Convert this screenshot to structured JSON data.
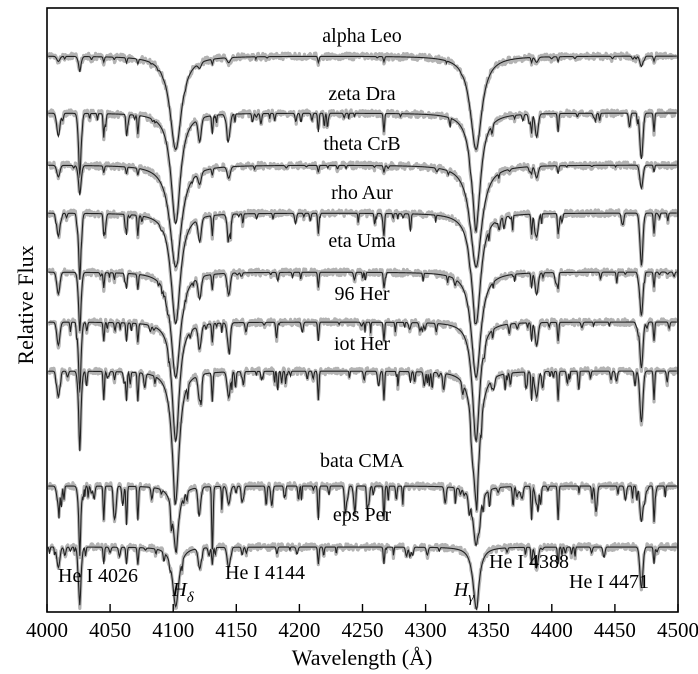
{
  "chart_data": {
    "type": "line",
    "title": "",
    "xlabel": "Wavelength (Å)",
    "ylabel": "Relative Flux",
    "xlim": [
      4000,
      4500
    ],
    "x_ticks": [
      4000,
      4050,
      4100,
      4150,
      4200,
      4250,
      4300,
      4350,
      4400,
      4450,
      4500
    ],
    "y_ticks_shown": false,
    "grid": false,
    "legend": "none",
    "colors": {
      "observed": "#b3b3b3",
      "model": "#222222",
      "axis": "#000000"
    },
    "line_annotations": [
      {
        "text": "He I 4026",
        "wavelength": 4026
      },
      {
        "text": "H",
        "subscript": "δ",
        "wavelength": 4102
      },
      {
        "text": "He I 4144",
        "wavelength": 4144
      },
      {
        "text": "H",
        "subscript": "γ",
        "wavelength": 4340
      },
      {
        "text": "He I 4388",
        "wavelength": 4388
      },
      {
        "text": "He I 4471",
        "wavelength": 4471
      }
    ],
    "series": [
      {
        "name": "alpha Leo",
        "hdelta_depth": 0.055,
        "hgamma_depth": 0.055,
        "hwidth": 5.5,
        "metal": 0.15,
        "he": 0.2,
        "seed": 3
      },
      {
        "name": "zeta Dra",
        "hdelta_depth": 0.065,
        "hgamma_depth": 0.065,
        "hwidth": 4.5,
        "metal": 0.55,
        "he": 0.9,
        "seed": 7
      },
      {
        "name": "theta CrB",
        "hdelta_depth": 0.06,
        "hgamma_depth": 0.06,
        "hwidth": 5.5,
        "metal": 0.2,
        "he": 0.45,
        "seed": 11
      },
      {
        "name": "rho Aur",
        "hdelta_depth": 0.065,
        "hgamma_depth": 0.065,
        "hwidth": 4.5,
        "metal": 0.6,
        "he": 0.9,
        "seed": 13
      },
      {
        "name": "eta Uma",
        "hdelta_depth": 0.062,
        "hgamma_depth": 0.062,
        "hwidth": 4.5,
        "metal": 0.45,
        "he": 0.85,
        "seed": 17
      },
      {
        "name": "96 Her",
        "hdelta_depth": 0.07,
        "hgamma_depth": 0.07,
        "hwidth": 3.5,
        "metal": 0.55,
        "he": 0.9,
        "seed": 19
      },
      {
        "name": "iot Her",
        "hdelta_depth": 0.075,
        "hgamma_depth": 0.075,
        "hwidth": 3.5,
        "metal": 0.85,
        "he": 1.0,
        "seed": 23
      },
      {
        "name": "bata CMA",
        "hdelta_depth": 0.035,
        "hgamma_depth": 0.035,
        "hwidth": 3.0,
        "metal": 1.0,
        "he": 0.7,
        "seed": 29
      },
      {
        "name": "eps Per",
        "hdelta_depth": 0.035,
        "hgamma_depth": 0.035,
        "hwidth": 3.0,
        "metal": 0.5,
        "he": 0.8,
        "seed": 31
      }
    ]
  }
}
